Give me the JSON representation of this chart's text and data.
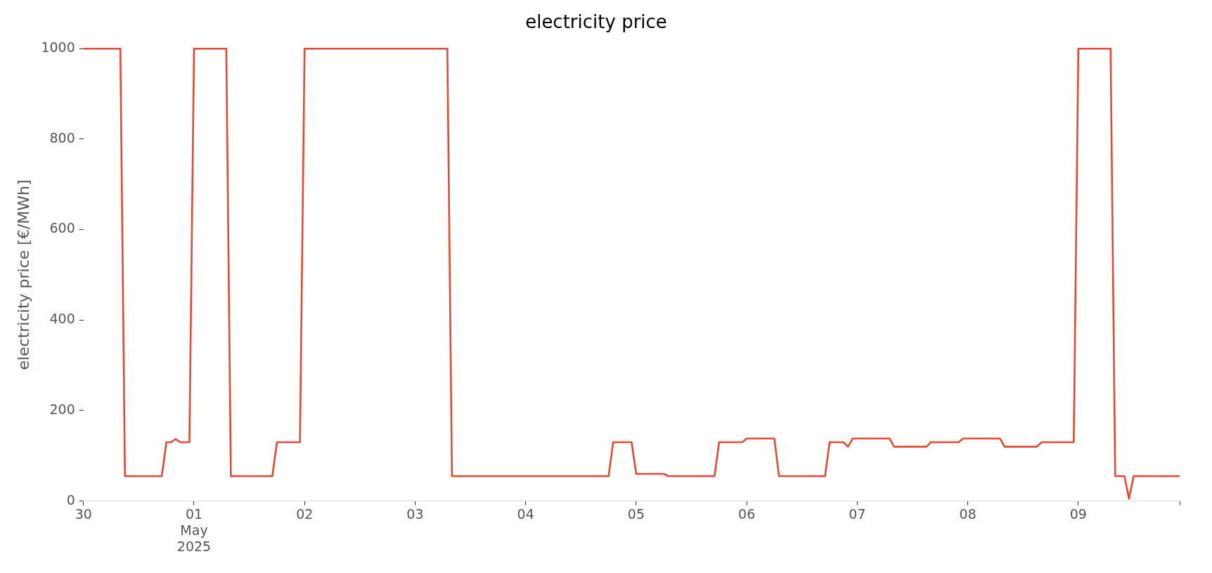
{
  "chart_data": {
    "type": "line",
    "title": "electricity price",
    "ylabel": "electricity price [€/MWh]",
    "x": [
      "2025-04-30T00:00",
      "2025-04-30T08:00",
      "2025-04-30T09:00",
      "2025-04-30T17:00",
      "2025-04-30T18:00",
      "2025-04-30T19:00",
      "2025-04-30T20:00",
      "2025-04-30T21:00",
      "2025-04-30T23:00",
      "2025-05-01T00:00",
      "2025-05-01T07:00",
      "2025-05-01T08:00",
      "2025-05-01T17:00",
      "2025-05-01T18:00",
      "2025-05-01T23:00",
      "2025-05-02T00:00",
      "2025-05-03T07:00",
      "2025-05-03T08:00",
      "2025-05-04T18:00",
      "2025-05-04T19:00",
      "2025-05-04T23:00",
      "2025-05-05T00:00",
      "2025-05-05T06:00",
      "2025-05-05T07:00",
      "2025-05-05T17:00",
      "2025-05-05T18:00",
      "2025-05-05T23:00",
      "2025-05-06T00:00",
      "2025-05-06T06:00",
      "2025-05-06T07:00",
      "2025-05-06T17:00",
      "2025-05-06T18:00",
      "2025-05-06T21:00",
      "2025-05-06T22:00",
      "2025-05-06T23:00",
      "2025-05-07T07:00",
      "2025-05-07T08:00",
      "2025-05-07T15:00",
      "2025-05-07T16:00",
      "2025-05-07T22:00",
      "2025-05-07T23:00",
      "2025-05-08T07:00",
      "2025-05-08T08:00",
      "2025-05-08T15:00",
      "2025-05-08T16:00",
      "2025-05-08T23:00",
      "2025-05-09T00:00",
      "2025-05-09T07:00",
      "2025-05-09T08:00",
      "2025-05-09T10:00",
      "2025-05-09T11:00",
      "2025-05-09T12:00",
      "2025-05-09T22:00"
    ],
    "series": [
      {
        "color": "#e24a33",
        "values": [
          1000,
          1000,
          55,
          55,
          130,
          130,
          137,
          130,
          130,
          1000,
          1000,
          55,
          55,
          130,
          130,
          1000,
          1000,
          55,
          55,
          130,
          130,
          60,
          60,
          55,
          55,
          130,
          130,
          138,
          138,
          55,
          55,
          130,
          130,
          120,
          138,
          138,
          120,
          120,
          130,
          130,
          138,
          138,
          120,
          120,
          130,
          130,
          1000,
          1000,
          55,
          55,
          5,
          55,
          55
        ]
      }
    ],
    "xticks": [
      {
        "value": "2025-04-30",
        "label": "30"
      },
      {
        "value": "2025-05-01",
        "label": "01\nMay\n2025"
      },
      {
        "value": "2025-05-02",
        "label": "02"
      },
      {
        "value": "2025-05-03",
        "label": "03"
      },
      {
        "value": "2025-05-04",
        "label": "04"
      },
      {
        "value": "2025-05-05",
        "label": "05"
      },
      {
        "value": "2025-05-06",
        "label": "06"
      },
      {
        "value": "2025-05-07",
        "label": "07"
      },
      {
        "value": "2025-05-08",
        "label": "08"
      },
      {
        "value": "2025-05-09",
        "label": "09"
      },
      {
        "value": "2025-05-09T22:00",
        "label": null
      }
    ],
    "xlim": [
      "2025-04-30T00:00",
      "2025-05-09T22:00"
    ],
    "ylim": [
      0,
      1000
    ],
    "yticks": [
      0,
      200,
      400,
      600,
      800,
      1000
    ],
    "grid": false,
    "legend": false,
    "marker": "none",
    "line_style": "solid"
  }
}
